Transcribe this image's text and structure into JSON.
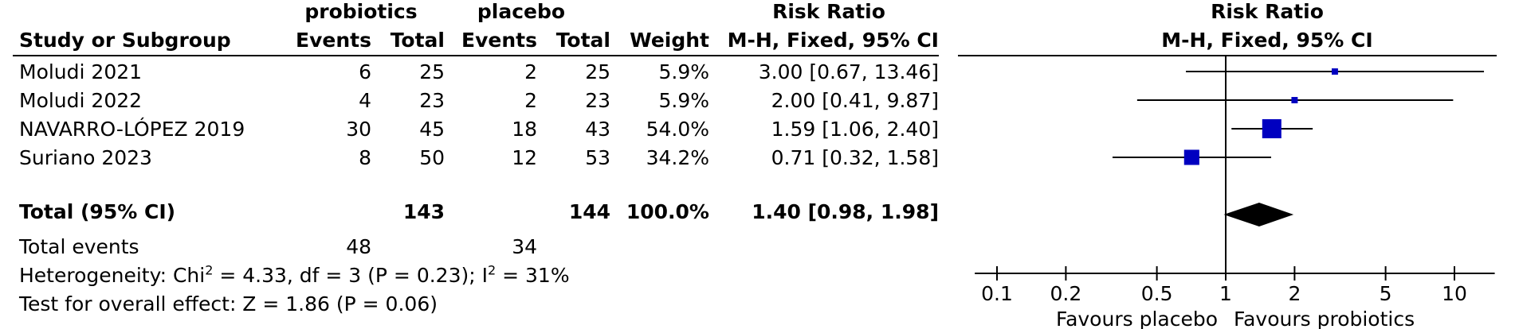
{
  "header": {
    "group1": "probiotics",
    "group2": "placebo",
    "study_col": "Study or Subgroup",
    "events1": "Events",
    "total1": "Total",
    "events2": "Events",
    "total2": "Total",
    "weight": "Weight",
    "rr_title": "Risk Ratio",
    "rr_method": "M-H, Fixed, 95% CI",
    "plot_title": "Risk Ratio",
    "plot_method": "M-H, Fixed, 95% CI"
  },
  "studies": [
    {
      "name": "Moludi 2021",
      "e1": "6",
      "t1": "25",
      "e2": "2",
      "t2": "25",
      "weight": "5.9%",
      "ci": "3.00 [0.67, 13.46]"
    },
    {
      "name": "Moludi 2022",
      "e1": "4",
      "t1": "23",
      "e2": "2",
      "t2": "23",
      "weight": "5.9%",
      "ci": "2.00 [0.41, 9.87]"
    },
    {
      "name": "NAVARRO-LÓPEZ 2019",
      "e1": "30",
      "t1": "45",
      "e2": "18",
      "t2": "43",
      "weight": "54.0%",
      "ci": "1.59 [1.06, 2.40]"
    },
    {
      "name": "Suriano 2023",
      "e1": "8",
      "t1": "50",
      "e2": "12",
      "t2": "53",
      "weight": "34.2%",
      "ci": "0.71 [0.32, 1.58]"
    }
  ],
  "total": {
    "label": "Total (95% CI)",
    "t1": "143",
    "t2": "144",
    "weight": "100.0%",
    "ci": "1.40 [0.98, 1.98]"
  },
  "total_events": {
    "label": "Total events",
    "e1": "48",
    "e2": "34"
  },
  "heterogeneity": {
    "prefix": "Heterogeneity: Chi",
    "sup1": "2",
    "middle": " = 4.33, df = 3 (P = 0.23); I",
    "sup2": "2",
    "suffix": " = 31%"
  },
  "overall_effect": "Test for overall effect: Z = 1.86 (P = 0.06)",
  "favours": {
    "left": "Favours placebo",
    "right": "Favours probiotics"
  },
  "colors": {
    "marker": "#0000c0",
    "diamond": "#000000",
    "line": "#000000"
  },
  "chart_data": {
    "type": "forest",
    "scale": "log",
    "xlim": [
      0.08,
      15
    ],
    "ticks": [
      {
        "v": 0.1,
        "label": "0.1"
      },
      {
        "v": 0.2,
        "label": "0.2"
      },
      {
        "v": 0.5,
        "label": "0.5"
      },
      {
        "v": 1,
        "label": "1"
      },
      {
        "v": 2,
        "label": "2"
      },
      {
        "v": 5,
        "label": "5"
      },
      {
        "v": 10,
        "label": "10"
      }
    ],
    "studies": [
      {
        "rr": 3.0,
        "lo": 0.67,
        "hi": 13.46,
        "weight": 5.9
      },
      {
        "rr": 2.0,
        "lo": 0.41,
        "hi": 9.87,
        "weight": 5.9
      },
      {
        "rr": 1.59,
        "lo": 1.06,
        "hi": 2.4,
        "weight": 54.0
      },
      {
        "rr": 0.71,
        "lo": 0.32,
        "hi": 1.58,
        "weight": 34.2
      }
    ],
    "pooled": {
      "rr": 1.4,
      "lo": 0.98,
      "hi": 1.98
    }
  }
}
